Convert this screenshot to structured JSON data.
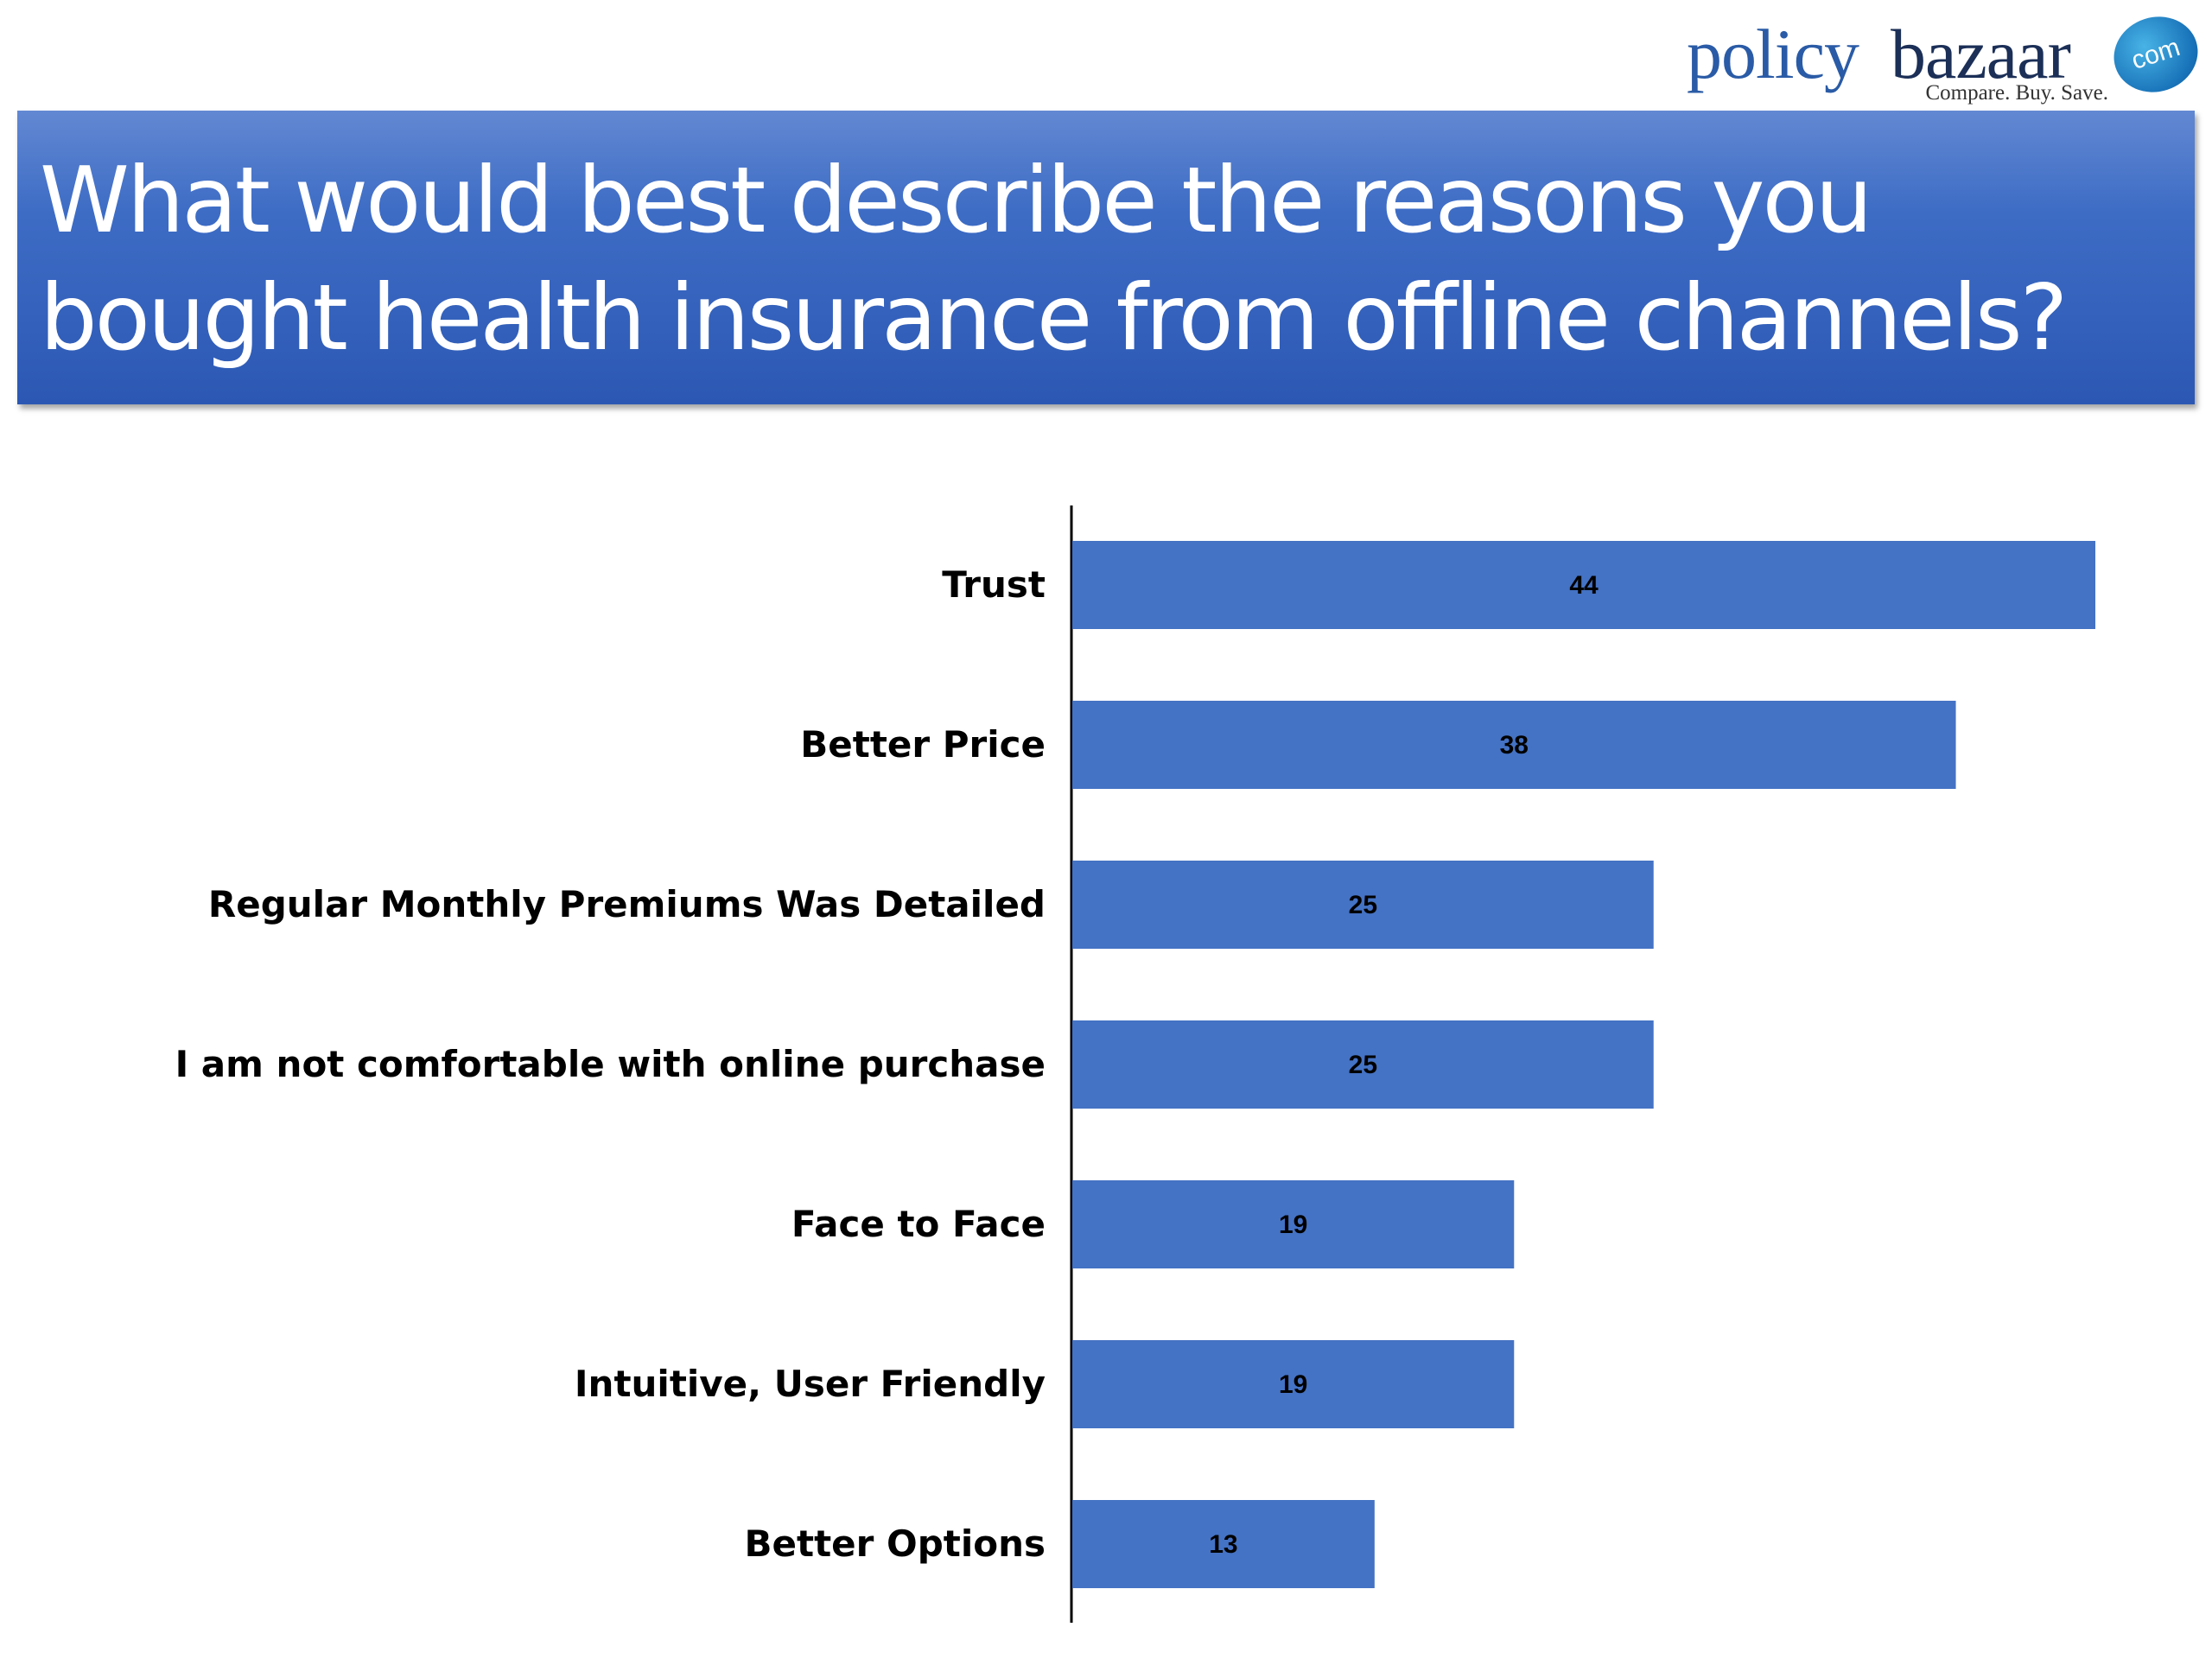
{
  "logo": {
    "word1": "policy",
    "word2": "bazaar",
    "suffix": "com",
    "tagline": "Compare. Buy. Save."
  },
  "banner": {
    "title": "What would best describe the reasons you\nbought health insurance from offline channels?"
  },
  "colors": {
    "banner": "#3d6cc5",
    "bar": "#4472c4"
  },
  "chart_data": {
    "type": "bar",
    "orientation": "horizontal",
    "categories": [
      "Trust",
      "Better Price",
      "Regular Monthly Premiums Was Detailed",
      "I am not comfortable with online purchase",
      "Face to Face",
      "Intuitive, User Friendly",
      "Better Options"
    ],
    "values": [
      44,
      38,
      25,
      25,
      19,
      19,
      13
    ],
    "data_labels": true,
    "grid": false,
    "legend": "none",
    "xlim": [
      0,
      44
    ]
  }
}
